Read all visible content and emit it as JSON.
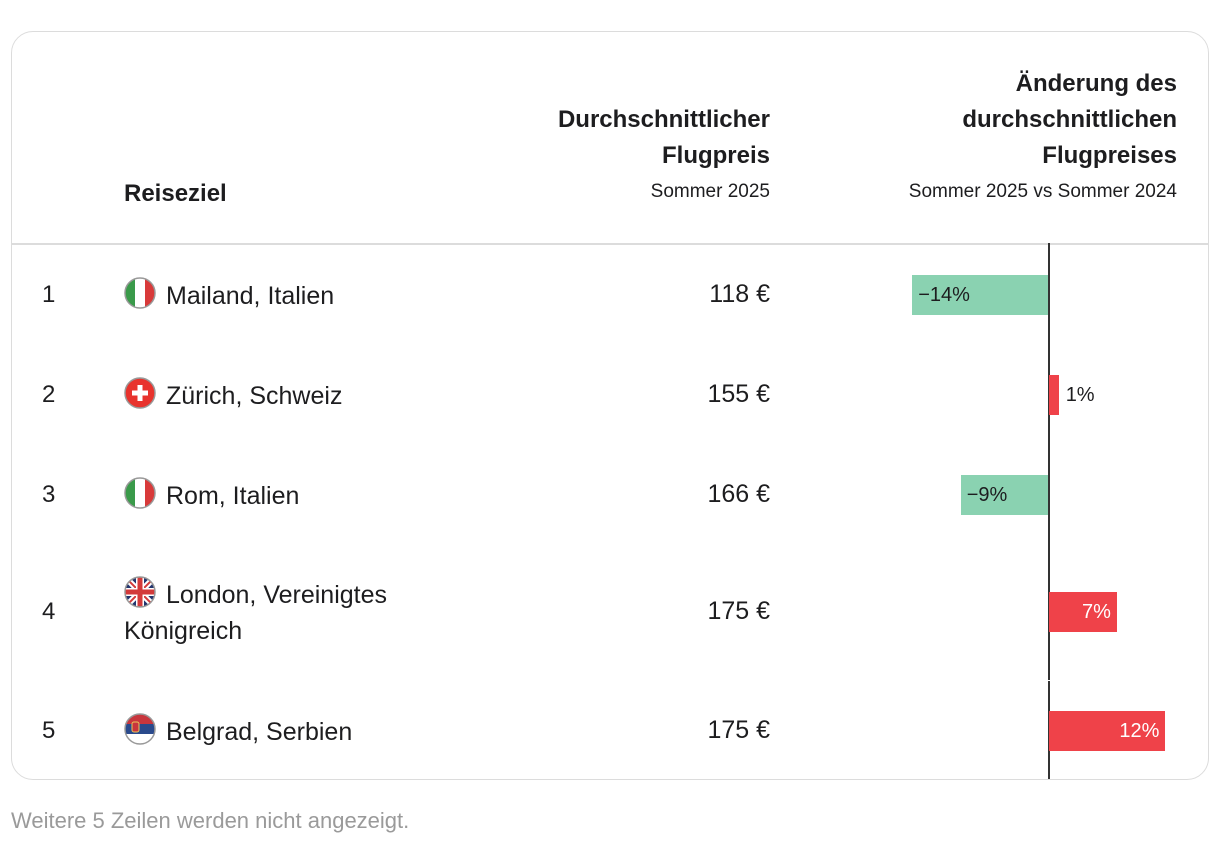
{
  "header": {
    "destination": "Reiseziel",
    "price_title": "Durchschnittlicher\nFlugpreis",
    "price_subtitle": "Sommer 2025",
    "change_title": "Änderung des\ndurchschnittlichen\nFlugpreises",
    "change_subtitle": "Sommer 2025 vs Sommer 2024"
  },
  "chart_data": {
    "type": "table",
    "columns": [
      "Reiseziel",
      "Durchschnittlicher Flugpreis",
      "Änderung des durchschnittlichen Flugpreises"
    ],
    "rows": [
      {
        "rank": "1",
        "destination": "Mailand, Italien",
        "flag": "italy-flag-icon",
        "price": "118 €",
        "change": -14,
        "change_label": "−14%"
      },
      {
        "rank": "2",
        "destination": "Zürich, Schweiz",
        "flag": "switzerland-flag-icon",
        "price": "155 €",
        "change": 1,
        "change_label": "1%"
      },
      {
        "rank": "3",
        "destination": "Rom, Italien",
        "flag": "italy-flag-icon",
        "price": "166 €",
        "change": -9,
        "change_label": "−9%"
      },
      {
        "rank": "4",
        "destination": "London, Vereinigtes Königreich",
        "flag": "uk-flag-icon",
        "price": "175 €",
        "change": 7,
        "change_label": "7%"
      },
      {
        "rank": "5",
        "destination": "Belgrad, Serbien",
        "flag": "serbia-flag-icon",
        "price": "175 €",
        "change": 12,
        "change_label": "12%"
      }
    ],
    "colors": {
      "negative": "#8ad2b1",
      "positive": "#ef4249"
    }
  },
  "footer": {
    "note": "Weitere 5 Zeilen werden nicht angezeigt."
  }
}
